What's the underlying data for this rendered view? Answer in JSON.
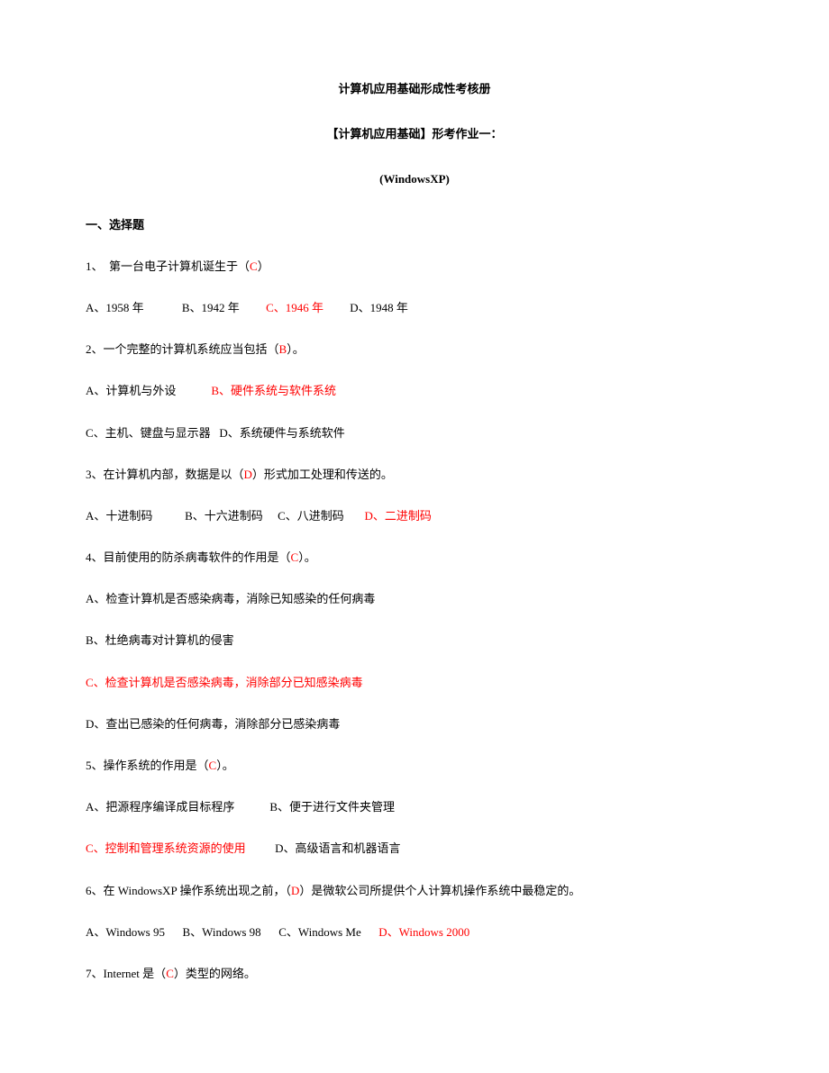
{
  "colors": {
    "text": "#000000",
    "answer": "#ff0000",
    "background": "#ffffff"
  },
  "header": {
    "title1": "计算机应用基础形成性考核册",
    "title2": "【计算机应用基础】形考作业一：",
    "title3": "(WindowsXP)"
  },
  "sectionHeading": "一、选择题",
  "q1": {
    "stem": "1、  第一台电子计算机诞生于（",
    "ans": "C",
    "tail": "）",
    "a": "A、1958 年",
    "b": "B、1942 年",
    "c": "C、1946 年",
    "d": "D、1948 年"
  },
  "q2": {
    "stem": "2、一个完整的计算机系统应当包括（",
    "ans": "B",
    "tail": "）。",
    "a": "A、计算机与外设",
    "b": "B、硬件系统与软件系统",
    "c": "C、主机、键盘与显示器",
    "d": "D、系统硬件与系统软件"
  },
  "q3": {
    "stem": "3、在计算机内部，数据是以（",
    "ans": "D",
    "tail": "）形式加工处理和传送的。",
    "a": "A、十进制码",
    "b": "B、十六进制码",
    "c": "C、八进制码",
    "d": "D、二进制码"
  },
  "q4": {
    "stem": "4、目前使用的防杀病毒软件的作用是（",
    "ans": "C",
    "tail": "）。",
    "a": "A、检查计算机是否感染病毒，消除已知感染的任何病毒",
    "b": "B、杜绝病毒对计算机的侵害",
    "c": "C、检查计算机是否感染病毒，消除部分已知感染病毒",
    "d": "D、查出已感染的任何病毒，消除部分已感染病毒"
  },
  "q5": {
    "stem": "5、操作系统的作用是（",
    "ans": "C",
    "tail": "）。",
    "a": "A、把源程序编译成目标程序",
    "b": "B、便于进行文件夹管理",
    "c": "C、控制和管理系统资源的使用",
    "d": "D、高级语言和机器语言"
  },
  "q6": {
    "stem": "6、在 WindowsXP 操作系统出现之前，（",
    "ans": "D",
    "tail": "）是微软公司所提供个人计算机操作系统中最稳定的。",
    "a": "A、Windows 95",
    "b": "B、Windows 98",
    "c": "C、Windows Me",
    "d": "D、Windows 2000"
  },
  "q7": {
    "stem": "7、Internet 是（",
    "ans": "C",
    "tail": "）类型的网络。"
  }
}
